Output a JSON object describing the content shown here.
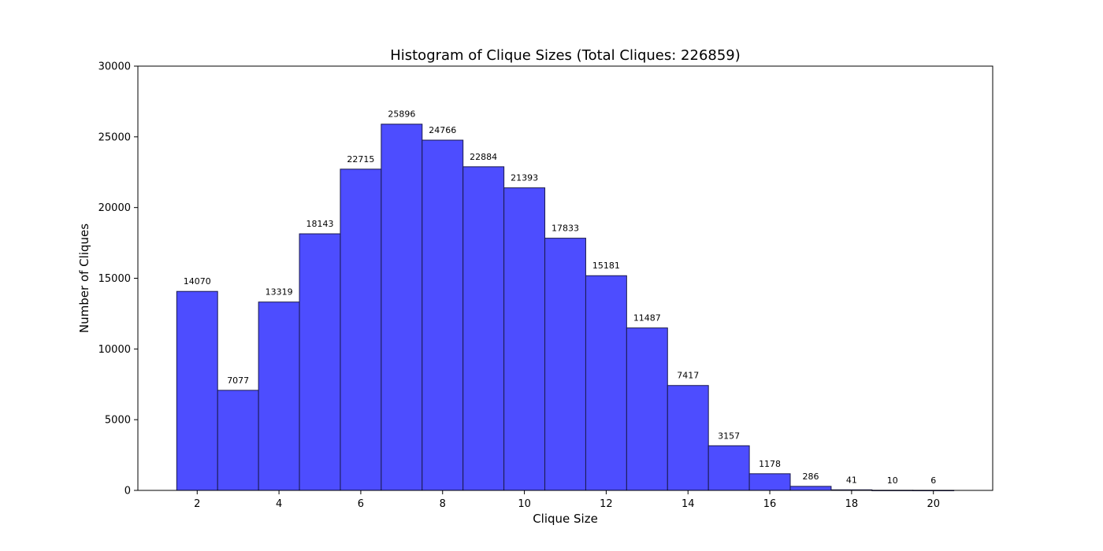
{
  "chart_data": {
    "type": "bar",
    "title": "Histogram of Clique Sizes (Total Cliques: 226859)",
    "xlabel": "Clique Size",
    "ylabel": "Number of Cliques",
    "x": [
      2,
      3,
      4,
      5,
      6,
      7,
      8,
      9,
      10,
      11,
      12,
      13,
      14,
      15,
      16,
      17,
      18,
      19,
      20
    ],
    "values": [
      14070,
      7077,
      13319,
      18143,
      22715,
      25896,
      24766,
      22884,
      21393,
      17833,
      15181,
      11487,
      7417,
      3157,
      1178,
      286,
      41,
      10,
      6
    ],
    "xlim": [
      0.55,
      21.45
    ],
    "ylim": [
      0,
      30000
    ],
    "xticks": [
      2,
      4,
      6,
      8,
      10,
      12,
      14,
      16,
      18,
      20
    ],
    "yticks": [
      0,
      5000,
      10000,
      15000,
      20000,
      25000,
      30000
    ],
    "bar_color": "#4d4dff",
    "edge_color": "#1a1a4d",
    "grid": false,
    "legend": "none"
  }
}
